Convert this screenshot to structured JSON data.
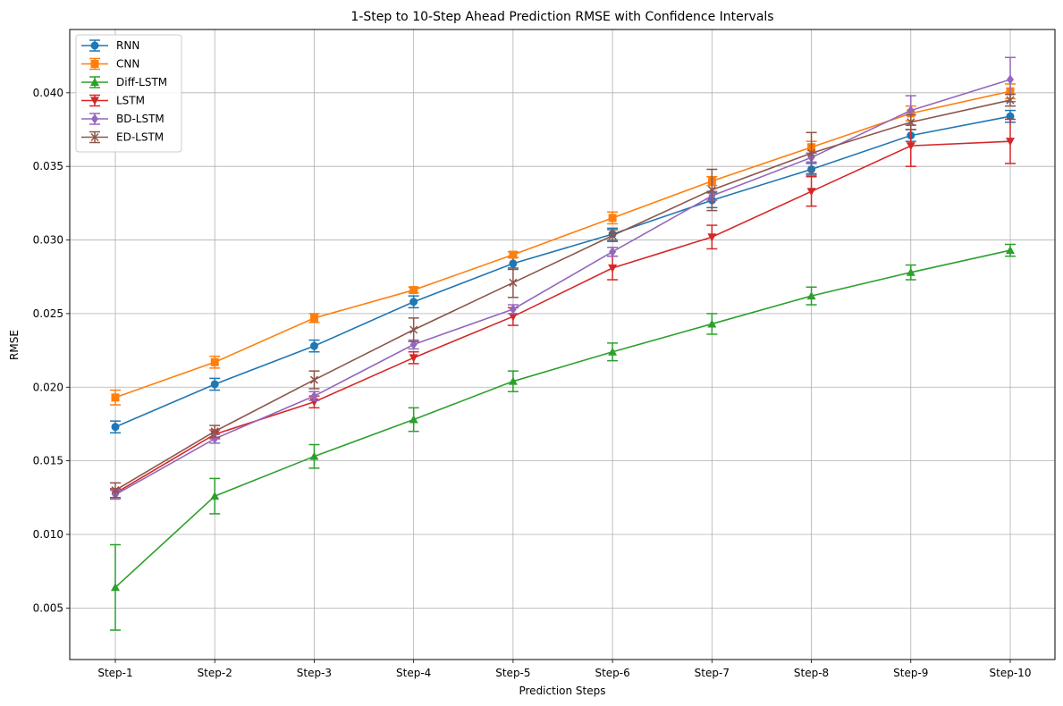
{
  "chart_data": {
    "type": "line",
    "title": "1-Step to 10-Step Ahead Prediction RMSE with Confidence Intervals",
    "xlabel": "Prediction Steps",
    "ylabel": "RMSE",
    "categories": [
      "Step-1",
      "Step-2",
      "Step-3",
      "Step-4",
      "Step-5",
      "Step-6",
      "Step-7",
      "Step-8",
      "Step-9",
      "Step-10"
    ],
    "ylim": [
      0.0015,
      0.0443
    ],
    "yticks": [
      "0.005",
      "0.010",
      "0.015",
      "0.020",
      "0.025",
      "0.030",
      "0.035",
      "0.040"
    ],
    "grid": true,
    "legend_position": "upper left",
    "series": [
      {
        "name": "RNN",
        "color": "#1f77b4",
        "marker": "circle",
        "values": [
          0.0173,
          0.0202,
          0.0228,
          0.0258,
          0.0284,
          0.0304,
          0.0327,
          0.0348,
          0.0371,
          0.0384
        ],
        "errors": [
          0.0004,
          0.0004,
          0.0004,
          0.0004,
          0.0004,
          0.0004,
          0.0005,
          0.0004,
          0.0004,
          0.0004
        ]
      },
      {
        "name": "CNN",
        "color": "#ff7f0e",
        "marker": "square",
        "values": [
          0.0193,
          0.0217,
          0.0247,
          0.0266,
          0.029,
          0.0315,
          0.034,
          0.0363,
          0.0386,
          0.0401
        ],
        "errors": [
          0.0005,
          0.0004,
          0.0003,
          0.0002,
          0.0002,
          0.0004,
          0.0003,
          0.0004,
          0.0005,
          0.0005
        ]
      },
      {
        "name": "Diff-LSTM",
        "color": "#2ca02c",
        "marker": "triangle-up",
        "values": [
          0.0064,
          0.0126,
          0.0153,
          0.0178,
          0.0204,
          0.0224,
          0.0243,
          0.0262,
          0.0278,
          0.0293
        ],
        "errors": [
          0.0029,
          0.0012,
          0.0008,
          0.0008,
          0.0007,
          0.0006,
          0.0007,
          0.0006,
          0.0005,
          0.0004
        ]
      },
      {
        "name": "LSTM",
        "color": "#d62728",
        "marker": "triangle-down",
        "values": [
          0.0128,
          0.0168,
          0.019,
          0.022,
          0.0248,
          0.0281,
          0.0302,
          0.0333,
          0.0364,
          0.0367
        ],
        "errors": [
          0.0003,
          0.0003,
          0.0004,
          0.0004,
          0.0006,
          0.0008,
          0.0008,
          0.001,
          0.0014,
          0.0015
        ]
      },
      {
        "name": "BD-LSTM",
        "color": "#9467bd",
        "marker": "diamond",
        "values": [
          0.0127,
          0.0165,
          0.0194,
          0.0229,
          0.0253,
          0.0292,
          0.033,
          0.0356,
          0.0388,
          0.0409
        ],
        "errors": [
          0.0003,
          0.0003,
          0.0003,
          0.0003,
          0.0003,
          0.0003,
          0.0003,
          0.0003,
          0.001,
          0.0015
        ]
      },
      {
        "name": "ED-LSTM",
        "color": "#8c564b",
        "marker": "x",
        "values": [
          0.013,
          0.017,
          0.0205,
          0.0239,
          0.0271,
          0.0303,
          0.0334,
          0.0359,
          0.038,
          0.0395
        ],
        "errors": [
          0.0005,
          0.0004,
          0.0006,
          0.0008,
          0.001,
          0.0004,
          0.0014,
          0.0014,
          0.0005,
          0.0004
        ]
      }
    ]
  }
}
